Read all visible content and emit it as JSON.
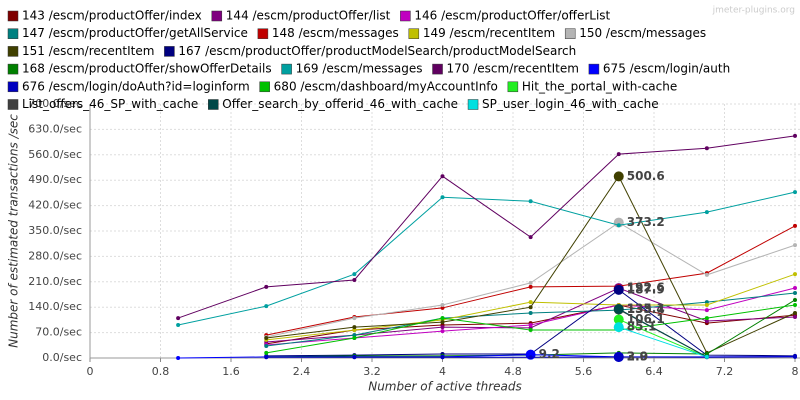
{
  "chart_data": {
    "type": "line",
    "watermark": "jmeter-plugins.org",
    "x_label": "Number of active threads",
    "y_label": "Number of estimated transactions /sec",
    "x": [
      1,
      2,
      3,
      4,
      5,
      6,
      7,
      8
    ],
    "xlim": [
      0,
      8
    ],
    "xticks": [
      0,
      0.8,
      1.6,
      2.4,
      3.2,
      4,
      4.8,
      5.6,
      6.4,
      7.2,
      8
    ],
    "ylim": [
      0,
      700
    ],
    "yticks": [
      {
        "value": 0,
        "label": "0.0/sec"
      },
      {
        "value": 70,
        "label": "70.0/sec"
      },
      {
        "value": 140,
        "label": "140.0/sec"
      },
      {
        "value": 210,
        "label": "210.0/sec"
      },
      {
        "value": 280,
        "label": "280.0/sec"
      },
      {
        "value": 350,
        "label": "350.0/sec"
      },
      {
        "value": 420,
        "label": "420.0/sec"
      },
      {
        "value": 490,
        "label": "490.0/sec"
      },
      {
        "value": 560,
        "label": "560.0/sec"
      },
      {
        "value": 630,
        "label": "630.0/sec"
      },
      {
        "value": 700,
        "label": "700.0/sec"
      }
    ],
    "grid": true,
    "series": [
      {
        "name": "143 /escm/productOffer/index",
        "color": "#7f0000",
        "values": [
          null,
          39,
          77,
          91,
          96,
          146,
          96,
          118
        ]
      },
      {
        "name": "144 /escm/productOffer/list",
        "color": "#800080",
        "values": [
          null,
          44,
          63,
          85,
          83,
          192.6,
          102,
          113
        ],
        "value_labels": [
          null,
          null,
          null,
          null,
          null,
          "192.6",
          null,
          null
        ]
      },
      {
        "name": "146 /escm/productOffer/offerList",
        "color": "#c000c0",
        "values": [
          null,
          36,
          55,
          74,
          91,
          146,
          132,
          193
        ]
      },
      {
        "name": "147 /escm/productOffer/getAllService",
        "color": "#008080",
        "values": [
          null,
          33,
          63,
          110,
          124,
          132,
          154,
          179
        ]
      },
      {
        "name": "148 /escm/messages",
        "color": "#c00000",
        "values": [
          null,
          63,
          113,
          138,
          196,
          198,
          234,
          364
        ]
      },
      {
        "name": "149 /escm/recentItem",
        "color": "#c0c000",
        "values": [
          null,
          50,
          77,
          105,
          154,
          146,
          146,
          231
        ]
      },
      {
        "name": "150 /escm/messages",
        "color": "#b4b4b4",
        "values": [
          null,
          58,
          110,
          146,
          207,
          373.2,
          229,
          311
        ],
        "value_labels": [
          null,
          null,
          null,
          null,
          null,
          "373.2",
          null,
          null
        ]
      },
      {
        "name": "151 /escm/recentItem",
        "color": "#404000",
        "values": [
          null,
          55,
          85,
          99,
          140,
          500.6,
          14,
          124
        ],
        "value_labels": [
          null,
          null,
          null,
          null,
          null,
          "500.6",
          null,
          null
        ]
      },
      {
        "name": "167 /escm/productOffer/productModelSearch/productModelSearch",
        "color": "#000080",
        "values": [
          null,
          6,
          8,
          11,
          11,
          187.9,
          8,
          6
        ],
        "value_labels": [
          null,
          null,
          null,
          null,
          null,
          "187.9",
          null,
          null
        ]
      },
      {
        "name": "168 /escm/productOffer/showOfferDetails",
        "color": "#008000",
        "values": [
          null,
          3,
          6,
          6,
          8,
          14,
          11,
          160
        ]
      },
      {
        "name": "169 /escm/messages",
        "color": "#00a0a0",
        "values": [
          91,
          143,
          231,
          443,
          432,
          366,
          402,
          457
        ]
      },
      {
        "name": "170 /escm/recentItem",
        "color": "#600060",
        "values": [
          110,
          196,
          215,
          501,
          333,
          562,
          578,
          612
        ]
      },
      {
        "name": "675 /escm/login/auth",
        "color": "#0000ff",
        "values": [
          0,
          3,
          3,
          3,
          9.2,
          3.0,
          3,
          4
        ],
        "value_labels": [
          null,
          null,
          null,
          null,
          "9.2",
          "3.0",
          null,
          null
        ]
      },
      {
        "name": "676 /escm/login/doAuth?id=loginform",
        "color": "#0000c0",
        "values": [
          null,
          2,
          2,
          2,
          2,
          2.9,
          2,
          3
        ],
        "value_labels": [
          null,
          null,
          null,
          null,
          null,
          "2.9",
          null,
          null
        ]
      },
      {
        "name": "680 /escm/dashboard/myAccountInfo",
        "color": "#00c000",
        "values": [
          null,
          14,
          55,
          110,
          77,
          77,
          110,
          146
        ]
      },
      {
        "name": "Hit_the_portal_with-cache",
        "color": "#22ee22",
        "values": [
          null,
          null,
          null,
          null,
          null,
          106.1,
          3,
          null
        ],
        "value_labels": [
          null,
          null,
          null,
          null,
          null,
          "106.1",
          null,
          null
        ]
      },
      {
        "name": "List_offers_46_SP_with_cache",
        "color": "#404040",
        "values": [
          null,
          null,
          null,
          null,
          null,
          133.4,
          3,
          null
        ],
        "value_labels": [
          null,
          null,
          null,
          null,
          null,
          "133.4",
          null,
          null
        ]
      },
      {
        "name": "Offer_search_by_offerid_46_with_cache",
        "color": "#004848",
        "values": [
          null,
          null,
          null,
          null,
          null,
          135.1,
          3,
          null
        ],
        "value_labels": [
          null,
          null,
          null,
          null,
          null,
          "135.1",
          null,
          null
        ]
      },
      {
        "name": "SP_user_login_46_with_cache",
        "color": "#00e0e0",
        "values": [
          null,
          null,
          null,
          null,
          null,
          85.1,
          3,
          null
        ],
        "value_labels": [
          null,
          null,
          null,
          null,
          null,
          "85.1",
          null,
          null
        ]
      }
    ]
  }
}
